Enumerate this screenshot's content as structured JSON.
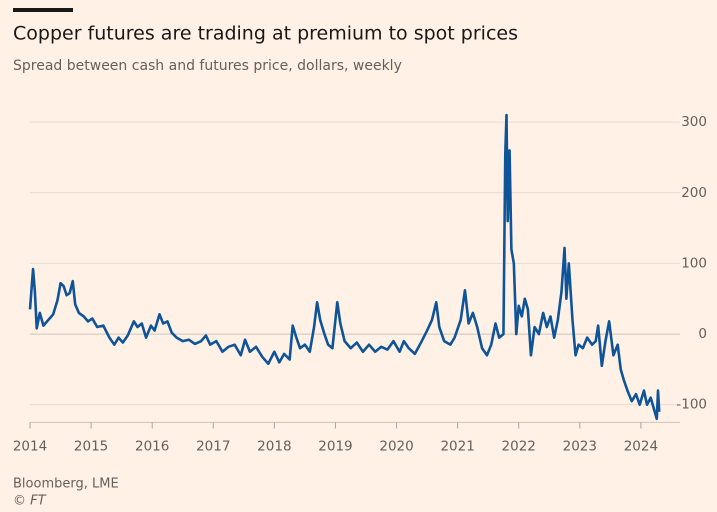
{
  "chart_data": {
    "type": "line",
    "title": "Copper futures are trading at premium to spot prices",
    "subtitle": "Spread between cash and futures price, dollars, weekly",
    "source": "Bloomberg, LME",
    "credit": "© FT",
    "color": "#0f5499",
    "grid": true,
    "xlim": [
      2014,
      2024.64
    ],
    "xticks": [
      2014,
      2015,
      2016,
      2017,
      2018,
      2019,
      2020,
      2021,
      2022,
      2023,
      2024
    ],
    "ylim": [
      -125,
      320
    ],
    "yticks": [
      -100,
      0,
      100,
      200,
      300
    ],
    "x": [
      2014.0,
      2014.05,
      2014.08,
      2014.11,
      2014.16,
      2014.22,
      2014.3,
      2014.38,
      2014.45,
      2014.5,
      2014.55,
      2014.6,
      2014.65,
      2014.7,
      2014.74,
      2014.8,
      2014.88,
      2014.95,
      2015.02,
      2015.1,
      2015.2,
      2015.3,
      2015.38,
      2015.45,
      2015.52,
      2015.6,
      2015.7,
      2015.76,
      2015.83,
      2015.9,
      2015.98,
      2016.04,
      2016.12,
      2016.18,
      2016.25,
      2016.32,
      2016.4,
      2016.5,
      2016.6,
      2016.7,
      2016.8,
      2016.88,
      2016.95,
      2017.05,
      2017.15,
      2017.25,
      2017.35,
      2017.45,
      2017.52,
      2017.6,
      2017.7,
      2017.8,
      2017.9,
      2018.0,
      2018.08,
      2018.16,
      2018.25,
      2018.3,
      2018.36,
      2018.42,
      2018.5,
      2018.58,
      2018.65,
      2018.7,
      2018.75,
      2018.82,
      2018.88,
      2018.95,
      2019.03,
      2019.08,
      2019.15,
      2019.25,
      2019.35,
      2019.45,
      2019.55,
      2019.65,
      2019.75,
      2019.85,
      2019.95,
      2020.05,
      2020.12,
      2020.2,
      2020.3,
      2020.4,
      2020.5,
      2020.58,
      2020.65,
      2020.7,
      2020.78,
      2020.88,
      2020.95,
      2021.05,
      2021.12,
      2021.18,
      2021.25,
      2021.32,
      2021.4,
      2021.48,
      2021.55,
      2021.62,
      2021.68,
      2021.75,
      2021.78,
      2021.8,
      2021.82,
      2021.85,
      2021.88,
      2021.92,
      2021.96,
      2022.0,
      2022.05,
      2022.1,
      2022.15,
      2022.2,
      2022.26,
      2022.33,
      2022.4,
      2022.46,
      2022.52,
      2022.58,
      2022.64,
      2022.7,
      2022.75,
      2022.78,
      2022.82,
      2022.88,
      2022.93,
      2022.98,
      2023.05,
      2023.12,
      2023.2,
      2023.26,
      2023.3,
      2023.36,
      2023.42,
      2023.48,
      2023.55,
      2023.62,
      2023.67,
      2023.72,
      2023.78,
      2023.85,
      2023.92,
      2023.98,
      2024.05,
      2024.1,
      2024.16,
      2024.22,
      2024.26,
      2024.28,
      2024.3
    ],
    "values": [
      35,
      92,
      60,
      8,
      30,
      12,
      20,
      28,
      48,
      72,
      68,
      55,
      58,
      75,
      42,
      30,
      25,
      18,
      22,
      10,
      12,
      -5,
      -15,
      -5,
      -12,
      -2,
      18,
      10,
      15,
      -5,
      12,
      5,
      28,
      15,
      18,
      2,
      -5,
      -10,
      -8,
      -14,
      -10,
      -2,
      -15,
      -10,
      -25,
      -18,
      -15,
      -30,
      -8,
      -25,
      -18,
      -32,
      -42,
      -25,
      -40,
      -28,
      -36,
      12,
      -5,
      -20,
      -15,
      -25,
      10,
      45,
      20,
      0,
      -15,
      -20,
      45,
      15,
      -10,
      -20,
      -12,
      -25,
      -15,
      -25,
      -18,
      -22,
      -10,
      -25,
      -10,
      -20,
      -28,
      -12,
      5,
      20,
      45,
      10,
      -10,
      -15,
      -5,
      20,
      62,
      15,
      30,
      10,
      -20,
      -30,
      -15,
      15,
      -5,
      0,
      255,
      310,
      160,
      260,
      120,
      100,
      0,
      40,
      25,
      50,
      35,
      -30,
      10,
      0,
      30,
      10,
      25,
      -5,
      20,
      60,
      122,
      50,
      100,
      20,
      -30,
      -15,
      -20,
      -5,
      -15,
      -10,
      12,
      -45,
      -10,
      18,
      -30,
      -15,
      -50,
      -65,
      -80,
      -95,
      -85,
      -100,
      -80,
      -100,
      -90,
      -108,
      -120,
      -80,
      -110
    ]
  }
}
